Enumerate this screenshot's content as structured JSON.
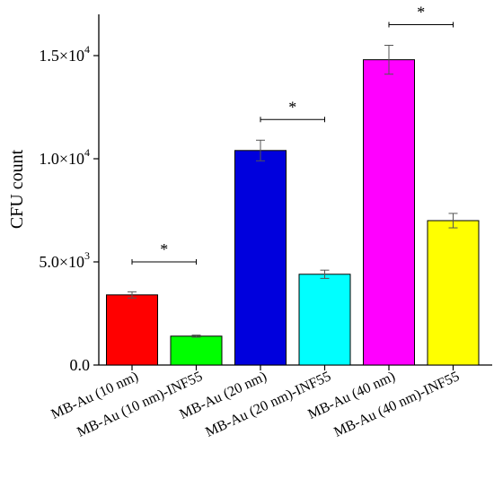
{
  "chart_data": {
    "type": "bar",
    "title": "",
    "xlabel": "",
    "ylabel": "CFU count",
    "ylim": [
      0,
      17000
    ],
    "grid": false,
    "legend": "none",
    "categories": [
      "MB-Au (10 nm)",
      "MB-Au (10 nm)-INF55",
      "MB-Au (20 nm)",
      "MB-Au (20 nm)-INF55",
      "MB-Au (40 nm)",
      "MB-Au (40 nm)-INF55"
    ],
    "values": [
      3400,
      1400,
      10400,
      4400,
      14800,
      7000
    ],
    "errors": [
      150,
      50,
      500,
      200,
      700,
      350
    ],
    "colors": [
      "#ff0000",
      "#00ff00",
      "#0000dd",
      "#00ffff",
      "#ff00ff",
      "#ffff00"
    ],
    "yticks": [
      {
        "value": 0,
        "mant": "0.0",
        "exp": ""
      },
      {
        "value": 5000,
        "mant": "5.0×10",
        "exp": "3"
      },
      {
        "value": 10000,
        "mant": "1.0×10",
        "exp": "4"
      },
      {
        "value": 15000,
        "mant": "1.5×10",
        "exp": "4"
      }
    ],
    "significance": [
      {
        "from": 0,
        "to": 1,
        "label": "*",
        "y": 5000
      },
      {
        "from": 2,
        "to": 3,
        "label": "*",
        "y": 11900
      },
      {
        "from": 4,
        "to": 5,
        "label": "*",
        "y": 16500
      }
    ]
  }
}
